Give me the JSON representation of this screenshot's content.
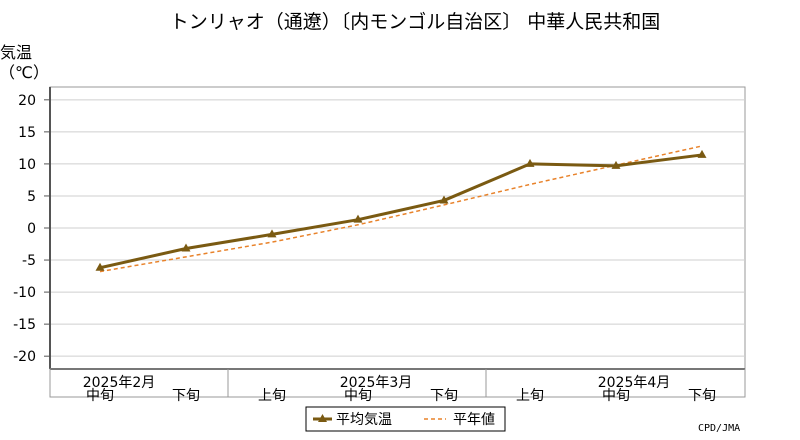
{
  "chart_data": {
    "type": "line",
    "title": "トンリャオ（通遼）〔内モンゴル自治区〕 中華人民共和国",
    "ylabel_line1": "気温",
    "ylabel_line2": "（℃）",
    "ylim": [
      -22,
      22
    ],
    "yticks": [
      20,
      15,
      10,
      5,
      0,
      -5,
      -10,
      -15,
      -20
    ],
    "ytick_labels": [
      "20",
      "15",
      "10",
      "5",
      "0",
      "-5",
      "-10",
      "-15",
      "-20"
    ],
    "categories": [
      "中旬",
      "下旬",
      "上旬",
      "中旬",
      "下旬",
      "上旬",
      "中旬",
      "下旬"
    ],
    "months": [
      "2025年2月",
      "2025年3月",
      "2025年4月"
    ],
    "grid": true,
    "legend_position": "bottom-center",
    "series": [
      {
        "name": "平均気温",
        "style": "solid-triangle",
        "color": "#7a5a12",
        "values": [
          -6.2,
          -3.2,
          -1.0,
          1.3,
          4.3,
          10.0,
          9.7,
          11.4
        ]
      },
      {
        "name": "平年値",
        "style": "dashed",
        "color": "#e8822a",
        "values": [
          -6.8,
          -4.5,
          -2.2,
          0.5,
          3.6,
          6.8,
          9.8,
          12.8
        ]
      }
    ]
  },
  "credit": "CPD/JMA"
}
